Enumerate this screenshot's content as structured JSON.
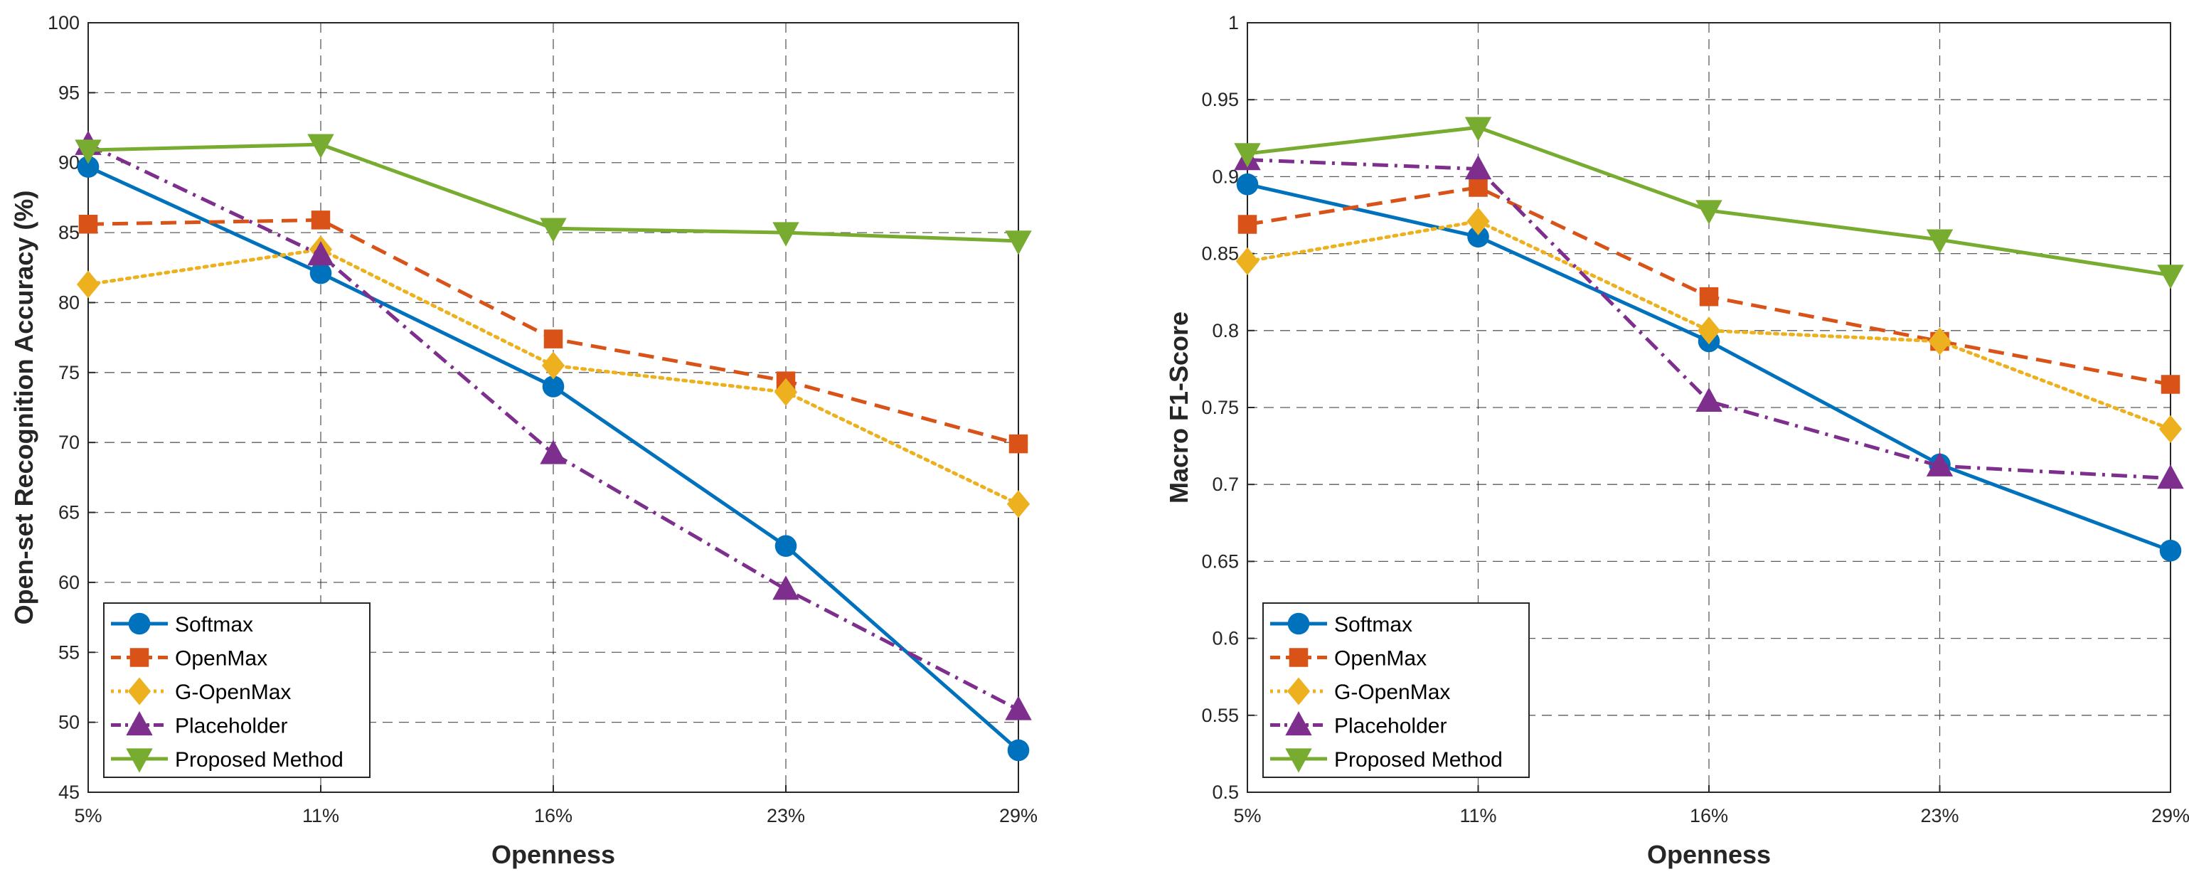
{
  "chart_data": [
    {
      "type": "line",
      "categories": [
        "5%",
        "11%",
        "16%",
        "23%",
        "29%"
      ],
      "xlabel": "Openness",
      "ylabel": "Open-set Recognition Accuracy (%)",
      "ylim": [
        45,
        100
      ],
      "yticks": [
        "45",
        "50",
        "55",
        "60",
        "65",
        "70",
        "75",
        "80",
        "85",
        "90",
        "95",
        "100"
      ],
      "grid": true,
      "legend_position": "bottom-left",
      "series": [
        {
          "name": "Softmax",
          "color": "#0072BD",
          "marker": "circle",
          "line": "solid",
          "values": [
            89.7,
            82.1,
            74.0,
            62.6,
            48.0
          ]
        },
        {
          "name": "OpenMax",
          "color": "#D95319",
          "marker": "square",
          "line": "dashed",
          "values": [
            85.6,
            85.9,
            77.4,
            74.4,
            69.9
          ]
        },
        {
          "name": "G-OpenMax",
          "color": "#EDB120",
          "marker": "diamond",
          "line": "dotted",
          "values": [
            81.3,
            83.8,
            75.5,
            73.6,
            65.6
          ]
        },
        {
          "name": "Placeholder",
          "color": "#7E2F8E",
          "marker": "triangle-up",
          "line": "dashdot",
          "values": [
            91.3,
            83.4,
            69.2,
            59.5,
            50.9
          ]
        },
        {
          "name": "Proposed Method",
          "color": "#77AC30",
          "marker": "triangle-down",
          "line": "solid",
          "values": [
            90.9,
            91.3,
            85.3,
            85.0,
            84.4
          ]
        }
      ]
    },
    {
      "type": "line",
      "categories": [
        "5%",
        "11%",
        "16%",
        "23%",
        "29%"
      ],
      "xlabel": "Openness",
      "ylabel": "Macro F1-Score",
      "ylim": [
        0.5,
        1
      ],
      "yticks": [
        "0.5",
        "0.55",
        "0.6",
        "0.65",
        "0.7",
        "0.75",
        "0.8",
        "0.85",
        "0.9",
        "0.95",
        "1"
      ],
      "grid": true,
      "legend_position": "bottom-left",
      "series": [
        {
          "name": "Softmax",
          "color": "#0072BD",
          "marker": "circle",
          "line": "solid",
          "values": [
            0.895,
            0.861,
            0.793,
            0.713,
            0.657
          ]
        },
        {
          "name": "OpenMax",
          "color": "#D95319",
          "marker": "square",
          "line": "dashed",
          "values": [
            0.869,
            0.893,
            0.822,
            0.793,
            0.765
          ]
        },
        {
          "name": "G-OpenMax",
          "color": "#EDB120",
          "marker": "diamond",
          "line": "dotted",
          "values": [
            0.845,
            0.871,
            0.8,
            0.793,
            0.736
          ]
        },
        {
          "name": "Placeholder",
          "color": "#7E2F8E",
          "marker": "triangle-up",
          "line": "dashdot",
          "values": [
            0.911,
            0.905,
            0.754,
            0.712,
            0.704
          ]
        },
        {
          "name": "Proposed Method",
          "color": "#77AC30",
          "marker": "triangle-down",
          "line": "solid",
          "values": [
            0.915,
            0.932,
            0.878,
            0.859,
            0.836
          ]
        }
      ]
    }
  ]
}
